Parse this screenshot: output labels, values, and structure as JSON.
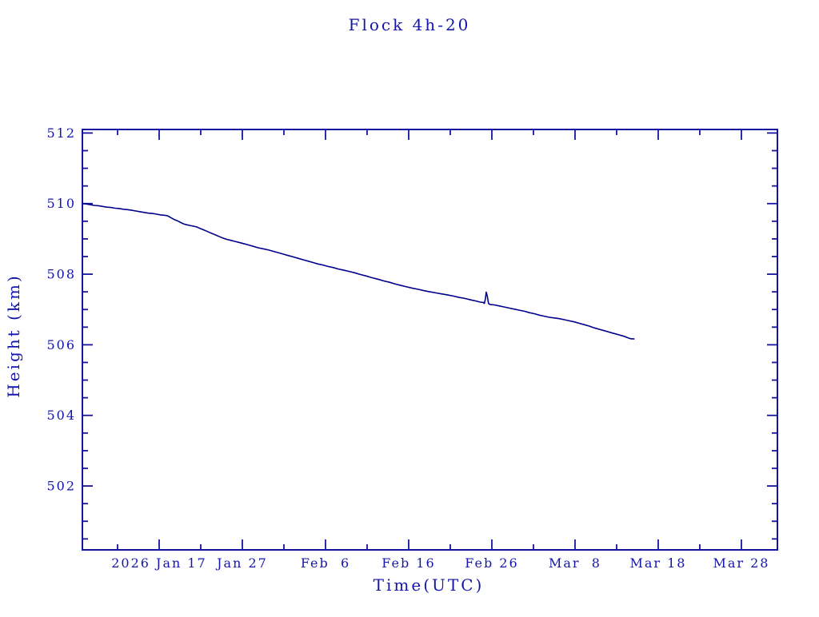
{
  "page": {
    "background": "#ffffff"
  },
  "chart_data": {
    "type": "line",
    "title": "Flock 4h-20",
    "xlabel": "Time(UTC)",
    "ylabel": "Height (km)",
    "x_axis_note": "x values are days relative to the '2026 Jan 17' major tick; axis shows UTC dates in 2026",
    "xlim": [
      -9.23,
      74.33
    ],
    "ylim": [
      500.19,
      512.1
    ],
    "grid": false,
    "legend_position": "none",
    "colors": {
      "axis": "#1414a0",
      "text": "#1515ab",
      "line": "#00008b",
      "background": "#ffffff"
    },
    "x_major_ticks": [
      {
        "day": 0,
        "label": "2026 Jan 17"
      },
      {
        "day": 10,
        "label": "Jan 27"
      },
      {
        "day": 20,
        "label": "Feb  6"
      },
      {
        "day": 30,
        "label": "Feb 16"
      },
      {
        "day": 40,
        "label": "Feb 26"
      },
      {
        "day": 50,
        "label": "Mar  8"
      },
      {
        "day": 60,
        "label": "Mar 18"
      },
      {
        "day": 70,
        "label": "Mar 28"
      }
    ],
    "x_minor_tick_days": [
      -5,
      5,
      15,
      25,
      35,
      45,
      55,
      65
    ],
    "y_major_ticks": [
      {
        "km": 512,
        "label": "512"
      },
      {
        "km": 510,
        "label": "510"
      },
      {
        "km": 508,
        "label": "508"
      },
      {
        "km": 506,
        "label": "506"
      },
      {
        "km": 504,
        "label": "504"
      },
      {
        "km": 502,
        "label": "502"
      }
    ],
    "y_minor_tick_step_km": 0.5,
    "series": [
      {
        "name": "Flock 4h-20 height",
        "points": [
          [
            -9.23,
            510.0
          ],
          [
            -8.8,
            509.99
          ],
          [
            -8.3,
            509.97
          ],
          [
            -7.8,
            509.95
          ],
          [
            -7.3,
            509.94
          ],
          [
            -6.8,
            509.92
          ],
          [
            -6.3,
            509.9
          ],
          [
            -5.8,
            509.89
          ],
          [
            -5.3,
            509.87
          ],
          [
            -4.8,
            509.86
          ],
          [
            -4.3,
            509.84
          ],
          [
            -3.8,
            509.83
          ],
          [
            -3.3,
            509.81
          ],
          [
            -2.8,
            509.79
          ],
          [
            -2.3,
            509.77
          ],
          [
            -1.8,
            509.75
          ],
          [
            -1.3,
            509.73
          ],
          [
            -0.8,
            509.72
          ],
          [
            -0.3,
            509.7
          ],
          [
            0.2,
            509.68
          ],
          [
            0.6,
            509.67
          ],
          [
            0.95,
            509.66
          ],
          [
            1.2,
            509.63
          ],
          [
            1.5,
            509.59
          ],
          [
            1.8,
            509.55
          ],
          [
            2.1,
            509.52
          ],
          [
            2.4,
            509.49
          ],
          [
            2.7,
            509.45
          ],
          [
            3.0,
            509.42
          ],
          [
            3.3,
            509.4
          ],
          [
            3.7,
            509.38
          ],
          [
            4.1,
            509.36
          ],
          [
            4.5,
            509.34
          ],
          [
            4.9,
            509.3
          ],
          [
            5.3,
            509.26
          ],
          [
            5.7,
            509.22
          ],
          [
            6.1,
            509.18
          ],
          [
            6.5,
            509.14
          ],
          [
            6.9,
            509.1
          ],
          [
            7.3,
            509.06
          ],
          [
            7.7,
            509.02
          ],
          [
            8.1,
            508.99
          ],
          [
            8.6,
            508.96
          ],
          [
            9.1,
            508.93
          ],
          [
            9.6,
            508.9
          ],
          [
            10.1,
            508.87
          ],
          [
            10.7,
            508.83
          ],
          [
            11.3,
            508.79
          ],
          [
            11.9,
            508.75
          ],
          [
            12.5,
            508.72
          ],
          [
            13.1,
            508.69
          ],
          [
            13.7,
            508.65
          ],
          [
            14.3,
            508.61
          ],
          [
            14.9,
            508.57
          ],
          [
            15.5,
            508.53
          ],
          [
            16.1,
            508.49
          ],
          [
            16.7,
            508.45
          ],
          [
            17.3,
            508.41
          ],
          [
            17.9,
            508.37
          ],
          [
            18.5,
            508.33
          ],
          [
            19.1,
            508.29
          ],
          [
            19.7,
            508.26
          ],
          [
            20.3,
            508.22
          ],
          [
            20.9,
            508.19
          ],
          [
            21.5,
            508.15
          ],
          [
            22.1,
            508.12
          ],
          [
            22.8,
            508.08
          ],
          [
            23.5,
            508.04
          ],
          [
            24.2,
            507.99
          ],
          [
            24.9,
            507.95
          ],
          [
            25.6,
            507.9
          ],
          [
            26.3,
            507.86
          ],
          [
            27.0,
            507.81
          ],
          [
            27.7,
            507.77
          ],
          [
            28.4,
            507.72
          ],
          [
            29.1,
            507.68
          ],
          [
            29.8,
            507.64
          ],
          [
            30.5,
            507.6
          ],
          [
            31.2,
            507.57
          ],
          [
            31.9,
            507.53
          ],
          [
            32.6,
            507.5
          ],
          [
            33.3,
            507.47
          ],
          [
            34.0,
            507.44
          ],
          [
            34.7,
            507.41
          ],
          [
            35.4,
            507.38
          ],
          [
            36.1,
            507.34
          ],
          [
            36.8,
            507.31
          ],
          [
            37.5,
            507.27
          ],
          [
            38.1,
            507.24
          ],
          [
            38.6,
            507.21
          ],
          [
            38.95,
            507.2
          ],
          [
            39.1,
            507.17
          ],
          [
            39.22,
            507.3
          ],
          [
            39.32,
            507.49
          ],
          [
            39.45,
            507.38
          ],
          [
            39.6,
            507.17
          ],
          [
            39.8,
            507.14
          ],
          [
            40.3,
            507.13
          ],
          [
            40.9,
            507.1
          ],
          [
            41.5,
            507.07
          ],
          [
            42.1,
            507.04
          ],
          [
            42.7,
            507.01
          ],
          [
            43.3,
            506.98
          ],
          [
            43.9,
            506.95
          ],
          [
            44.5,
            506.91
          ],
          [
            45.1,
            506.88
          ],
          [
            45.7,
            506.84
          ],
          [
            46.3,
            506.81
          ],
          [
            46.9,
            506.78
          ],
          [
            47.5,
            506.76
          ],
          [
            48.1,
            506.74
          ],
          [
            48.7,
            506.71
          ],
          [
            49.3,
            506.68
          ],
          [
            49.9,
            506.65
          ],
          [
            50.5,
            506.61
          ],
          [
            51.1,
            506.57
          ],
          [
            51.7,
            506.53
          ],
          [
            52.3,
            506.48
          ],
          [
            52.9,
            506.44
          ],
          [
            53.5,
            506.4
          ],
          [
            54.1,
            506.36
          ],
          [
            54.7,
            506.32
          ],
          [
            55.3,
            506.28
          ],
          [
            55.9,
            506.24
          ],
          [
            56.35,
            506.2
          ],
          [
            56.7,
            506.17
          ],
          [
            57.0,
            506.17
          ],
          [
            57.15,
            506.16
          ]
        ]
      }
    ]
  }
}
